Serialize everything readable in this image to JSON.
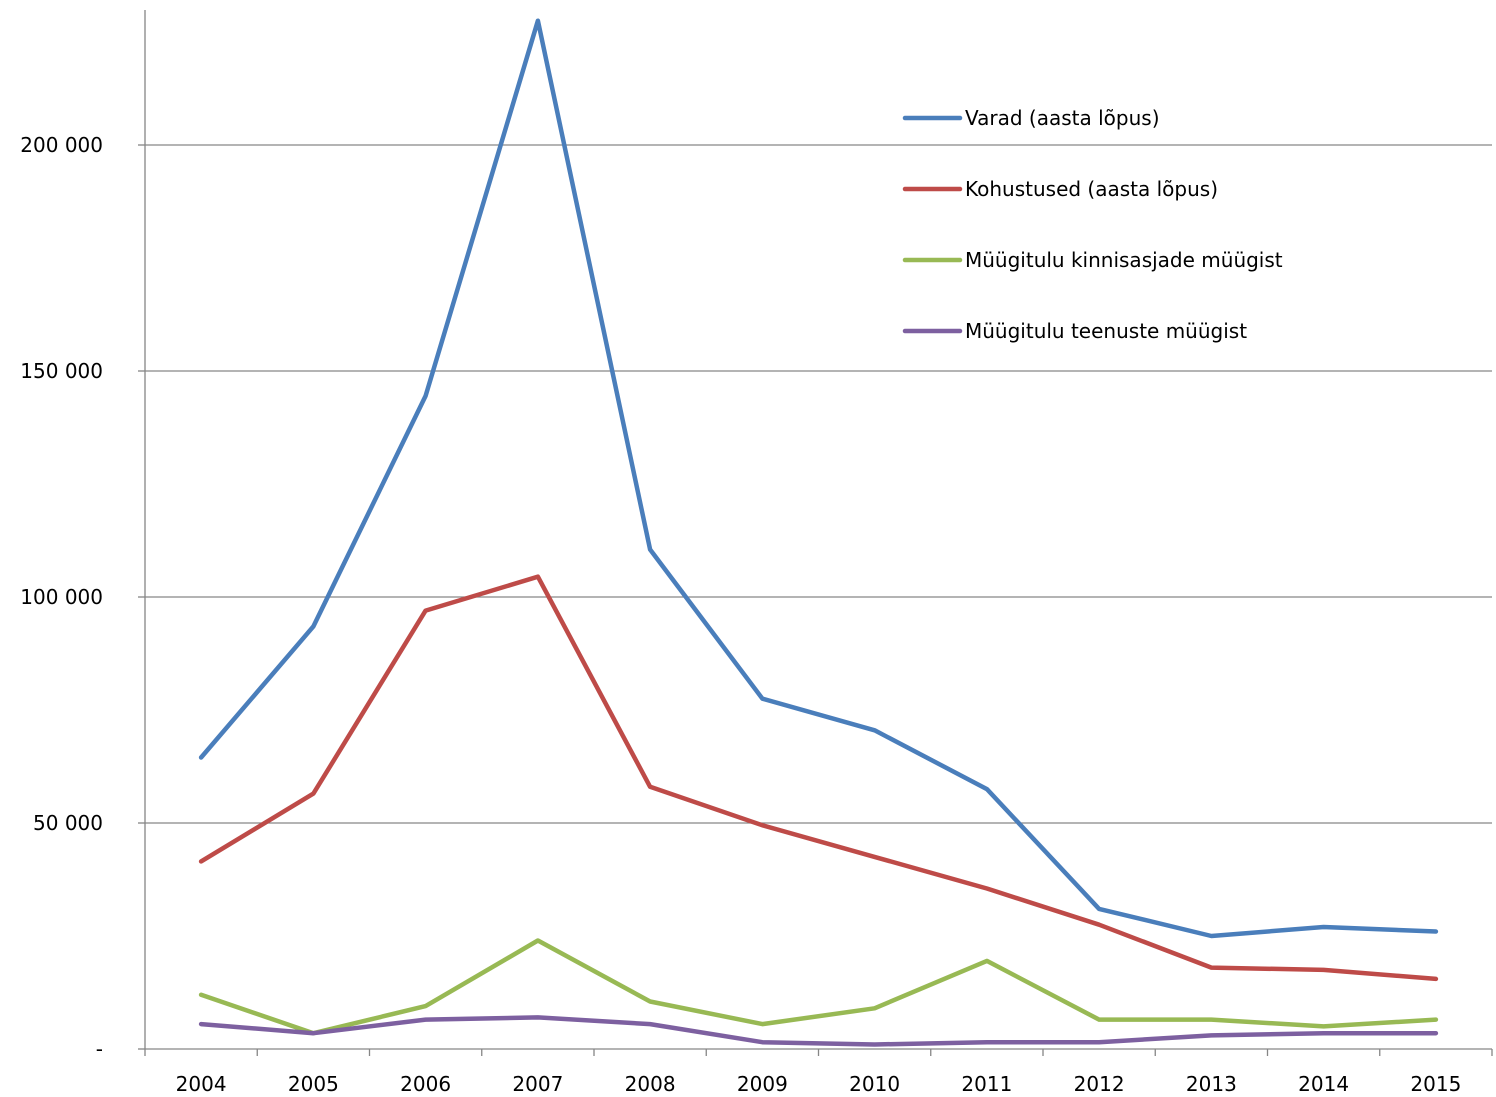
{
  "chart_data": {
    "type": "line",
    "title": "",
    "xlabel": "",
    "ylabel": "",
    "categories": [
      "2004",
      "2005",
      "2006",
      "2007",
      "2008",
      "2009",
      "2010",
      "2011",
      "2012",
      "2013",
      "2014",
      "2015"
    ],
    "ylim": [
      0,
      230000
    ],
    "yticks": [
      {
        "value": 0,
        "label": "-"
      },
      {
        "value": 50000,
        "label": "50 000"
      },
      {
        "value": 100000,
        "label": "100 000"
      },
      {
        "value": 150000,
        "label": "150 000"
      },
      {
        "value": 200000,
        "label": "200 000"
      }
    ],
    "grid": true,
    "legend_position": "top-right",
    "series": [
      {
        "name": "Varad (aasta lõpus)",
        "color": "#4a7ebb",
        "values": [
          64500,
          93500,
          144500,
          227500,
          110500,
          77500,
          70500,
          57500,
          31000,
          25000,
          27000,
          26000
        ]
      },
      {
        "name": "Kohustused (aasta lõpus)",
        "color": "#be4b48",
        "values": [
          41500,
          56500,
          97000,
          104500,
          58000,
          49500,
          42500,
          35500,
          27500,
          18000,
          17500,
          15500
        ]
      },
      {
        "name": "Müügitulu kinnisasjade müügist",
        "color": "#98b954",
        "values": [
          12000,
          3500,
          9500,
          24000,
          10500,
          5500,
          9000,
          19500,
          6500,
          6500,
          5000,
          6500
        ]
      },
      {
        "name": "Müügitulu teenuste müügist",
        "color": "#7d60a0",
        "values": [
          5500,
          3500,
          6500,
          7000,
          5500,
          1500,
          1000,
          1500,
          1500,
          3000,
          3500,
          3500
        ]
      }
    ]
  }
}
